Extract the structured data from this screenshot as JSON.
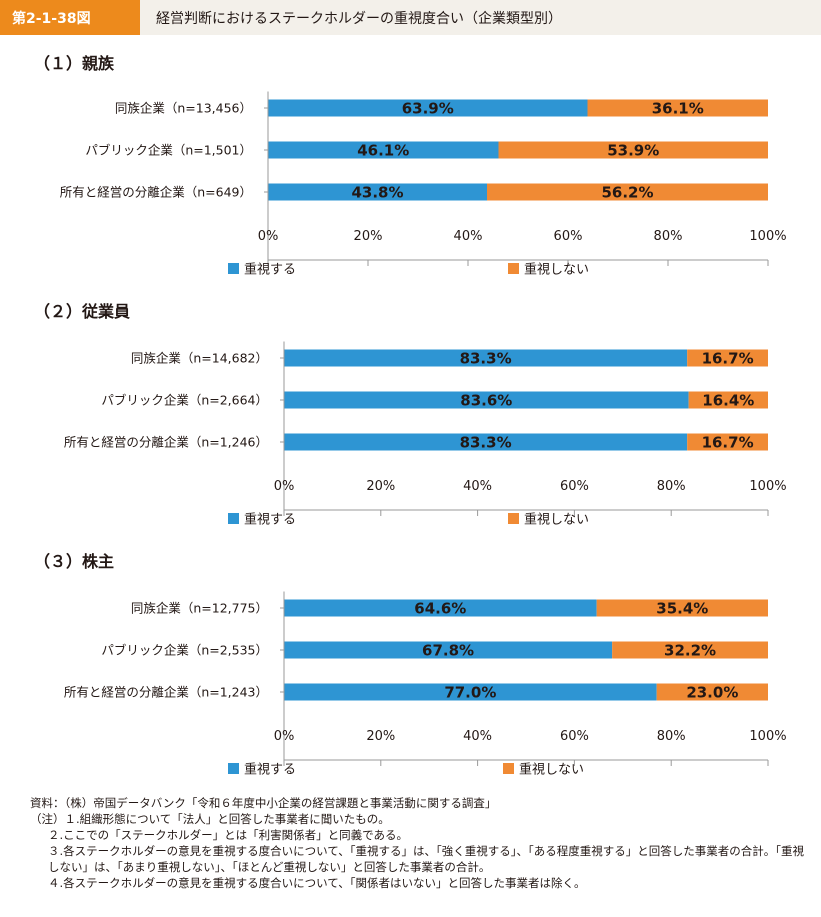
{
  "header": {
    "figure_label": "第2-1-38図",
    "title": "経営判断におけるステークホルダーの重視度合い（企業類型別）"
  },
  "colors": {
    "series_important": "#2E95D3",
    "series_not_important": "#F08A34",
    "header_label_bg": "#ED8A1C",
    "header_title_bg": "#F3F0EA"
  },
  "chart_data": [
    {
      "type": "bar",
      "orientation": "horizontal",
      "stacked": true,
      "percent": true,
      "title": "（１）親族",
      "categories": [
        "同族企業（n=13,456）",
        "パブリック企業（n=1,501）",
        "所有と経営の分離企業（n=649）"
      ],
      "series": [
        {
          "name": "重視する",
          "values": [
            63.9,
            46.1,
            43.8
          ],
          "labels": [
            "63.9%",
            "46.1%",
            "43.8%"
          ]
        },
        {
          "name": "重視しない",
          "values": [
            36.1,
            53.9,
            56.2
          ],
          "labels": [
            "36.1%",
            "53.9%",
            "56.2%"
          ]
        }
      ],
      "xlim": [
        0,
        100
      ],
      "xticks": [
        "0%",
        "20%",
        "40%",
        "60%",
        "80%",
        "100%"
      ],
      "legend_position": "bottom",
      "grid": false
    },
    {
      "type": "bar",
      "orientation": "horizontal",
      "stacked": true,
      "percent": true,
      "title": "（２）従業員",
      "categories": [
        "同族企業（n=14,682）",
        "パブリック企業（n=2,664）",
        "所有と経営の分離企業（n=1,246）"
      ],
      "series": [
        {
          "name": "重視する",
          "values": [
            83.3,
            83.6,
            83.3
          ],
          "labels": [
            "83.3%",
            "83.6%",
            "83.3%"
          ]
        },
        {
          "name": "重視しない",
          "values": [
            16.7,
            16.4,
            16.7
          ],
          "labels": [
            "16.7%",
            "16.4%",
            "16.7%"
          ]
        }
      ],
      "xlim": [
        0,
        100
      ],
      "xticks": [
        "0%",
        "20%",
        "40%",
        "60%",
        "80%",
        "100%"
      ],
      "legend_position": "bottom",
      "grid": false
    },
    {
      "type": "bar",
      "orientation": "horizontal",
      "stacked": true,
      "percent": true,
      "title": "（３）株主",
      "categories": [
        "同族企業（n=12,775）",
        "パブリック企業（n=2,535）",
        "所有と経営の分離企業（n=1,243）"
      ],
      "series": [
        {
          "name": "重視する",
          "values": [
            64.6,
            67.8,
            77.0
          ],
          "labels": [
            "64.6%",
            "67.8%",
            "77.0%"
          ]
        },
        {
          "name": "重視しない",
          "values": [
            35.4,
            32.2,
            23.0
          ],
          "labels": [
            "35.4%",
            "32.2%",
            "23.0%"
          ]
        }
      ],
      "xlim": [
        0,
        100
      ],
      "xticks": [
        "0%",
        "20%",
        "40%",
        "60%",
        "80%",
        "100%"
      ],
      "legend_position": "bottom",
      "grid": false
    }
  ],
  "notes": {
    "source": "資料：（株）帝国データバンク「令和６年度中小企業の経営課題と事業活動に関する調査」",
    "note1": "（注）１.組織形態について「法人」と回答した事業者に聞いたもの。",
    "note2": "２.ここでの「ステークホルダー」とは「利害関係者」と同義である。",
    "note3": "３.各ステークホルダーの意見を重視する度合いについて、「重視する」は、「強く重視する」、「ある程度重視する」と回答した事業者の合計。「重視しない」は、「あまり重視しない」、「ほとんど重視しない」と回答した事業者の合計。",
    "note4": "４.各ステークホルダーの意見を重視する度合いについて、「関係者はいない」と回答した事業者は除く。"
  }
}
